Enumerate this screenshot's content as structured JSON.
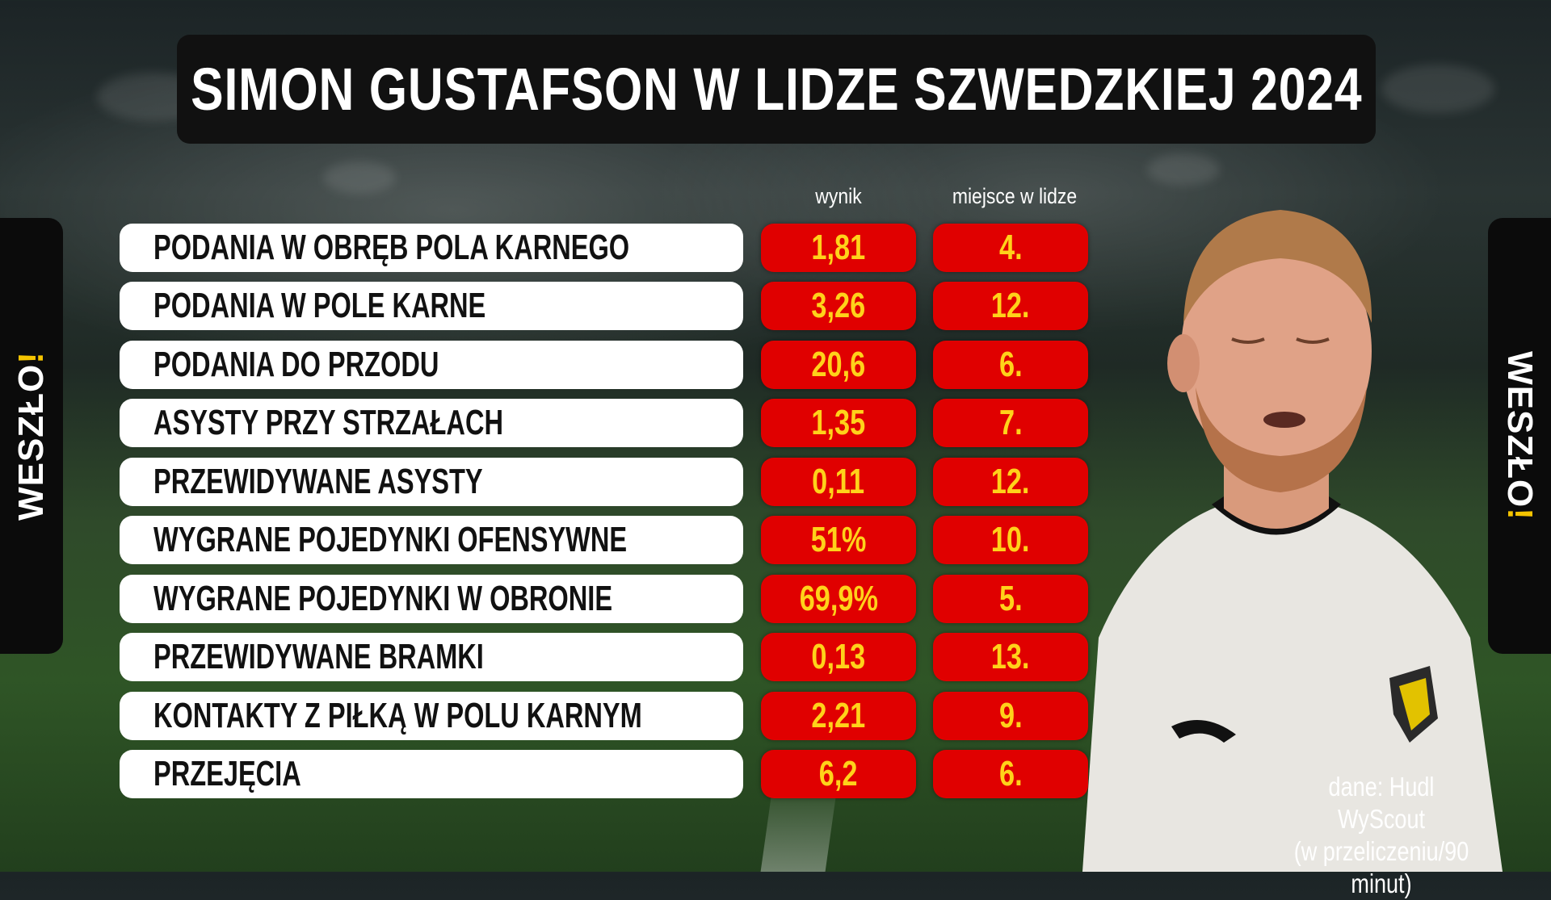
{
  "title": "SIMON GUSTAFSON W LIDZE SZWEDZKIEJ 2024",
  "columns": {
    "score": "wynik",
    "rank": "miejsce w lidze"
  },
  "rows": [
    {
      "label": "PODANIA W OBRĘB POLA KARNEGO",
      "score": "1,81",
      "rank": "4."
    },
    {
      "label": "PODANIA W POLE KARNE",
      "score": "3,26",
      "rank": "12."
    },
    {
      "label": "PODANIA DO PRZODU",
      "score": "20,6",
      "rank": "6."
    },
    {
      "label": "ASYSTY PRZY STRZAŁACH",
      "score": "1,35",
      "rank": "7."
    },
    {
      "label": "PRZEWIDYWANE ASYSTY",
      "score": "0,11",
      "rank": "12."
    },
    {
      "label": "WYGRANE POJEDYNKI OFENSYWNE",
      "score": "51%",
      "rank": "10."
    },
    {
      "label": "WYGRANE POJEDYNKI W OBRONIE",
      "score": "69,9%",
      "rank": "5."
    },
    {
      "label": "PRZEWIDYWANE BRAMKI",
      "score": "0,13",
      "rank": "13."
    },
    {
      "label": "KONTAKTY Z PIŁKĄ W POLU KARNYM",
      "score": "2,21",
      "rank": "9."
    },
    {
      "label": "PRZEJĘCIA",
      "score": "6,2",
      "rank": "6."
    }
  ],
  "logo": {
    "main": "WESZŁO",
    "accent": "!"
  },
  "source": {
    "line1": "dane: Hudl WyScout",
    "line2": "(w przeliczeniu/90 minut)"
  },
  "colors": {
    "accent_red": "#e00000",
    "accent_yellow": "#ffd21a",
    "title_bg": "#111111"
  }
}
